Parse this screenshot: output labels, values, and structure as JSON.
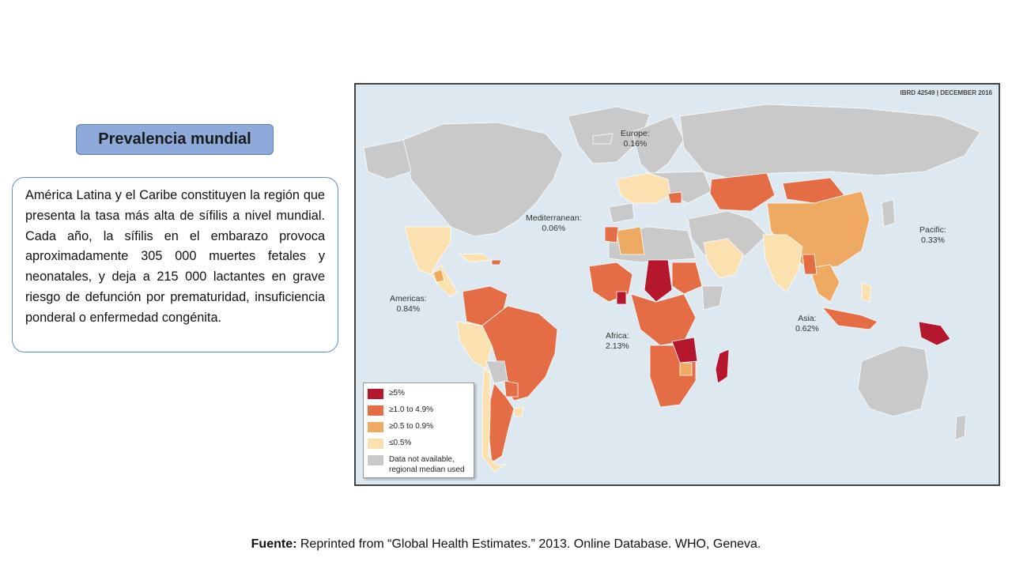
{
  "header": {
    "title": "Prevalencia mundial"
  },
  "description": "América Latina y el Caribe constituyen la región que presenta la tasa más alta de sífilis a nivel mundial. Cada año, la sífilis en el embarazo provoca aproximadamente 305 000 muertes fetales y neonatales, y deja a 215 000 lactantes en grave riesgo de defunción por prematuridad, insuficiencia ponderal o enfermedad congénita.",
  "map": {
    "id_label": "IBRD 42549 | DECEMBER 2016",
    "regions": [
      {
        "name": "Europe:",
        "value": "0.16%"
      },
      {
        "name": "Mediterranean:",
        "value": "0.06%"
      },
      {
        "name": "Pacific:",
        "value": "0.33%"
      },
      {
        "name": "Americas:",
        "value": "0.84%"
      },
      {
        "name": "Africa:",
        "value": "2.13%"
      },
      {
        "name": "Asia:",
        "value": "0.62%"
      }
    ],
    "legend": [
      {
        "label": "≥5%",
        "color": "#b5172f"
      },
      {
        "label": "≥1.0 to 4.9%",
        "color": "#e46d46"
      },
      {
        "label": "≥0.5 to 0.9%",
        "color": "#eeaa62"
      },
      {
        "label": "≤0.5%",
        "color": "#fbe0b0"
      },
      {
        "label": "Data not available, regional median used",
        "color": "#c9c9ca"
      }
    ],
    "colors": {
      "ocean": "#dde8f0",
      "no_data": "#c9c9ca"
    }
  },
  "footer": {
    "label": "Fuente:",
    "text": " Reprinted from “Global Health Estimates.” 2013. Online Database. WHO, Geneva."
  }
}
